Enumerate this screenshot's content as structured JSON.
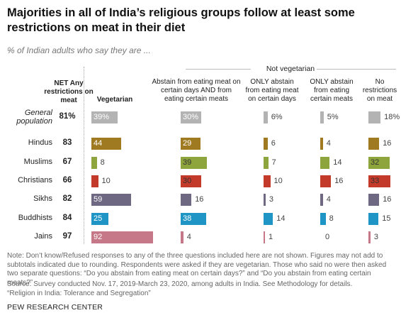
{
  "title": "Majorities in all of India’s religious groups follow at least some restrictions on meat in their diet",
  "subtitle": "% of Indian adults who say they are ...",
  "group_header": "Not vegetarian",
  "note": "Note: Don’t know/Refused responses to any of the three questions included here are not shown. Figures may not add to subtotals indicated due to rounding. Respondents were asked if they are vegetarian. Those who said no were then asked two separate questions: “Do you abstain from eating meat on certain days?” and “Do you abstain from eating certain meats?”",
  "source": "Source: Survey conducted Nov. 17, 2019-March 23, 2020, among adults in India. See Methodology for details.",
  "report": "“Religion in India: Tolerance and Segregation”",
  "credit": "PEW RESEARCH CENTER",
  "chart_data": {
    "type": "bar",
    "title": "Majorities in all of India’s religious groups follow at least some restrictions on meat in their diet",
    "net_header": "NET Any restrictions on meat",
    "net_values": [
      "81%",
      "83",
      "67",
      "66",
      "82",
      "84",
      "97"
    ],
    "categories": [
      "General population",
      "Hindus",
      "Muslims",
      "Christians",
      "Sikhs",
      "Buddhists",
      "Jains"
    ],
    "series": [
      {
        "name": "Vegetarian",
        "values": [
          39,
          44,
          8,
          10,
          59,
          25,
          92
        ],
        "labels": [
          "39%",
          "44",
          "8",
          "10",
          "59",
          "25",
          "92"
        ]
      },
      {
        "name": "Abstain from eating meat on certain days AND from eating certain meats",
        "values": [
          30,
          29,
          39,
          30,
          16,
          38,
          4
        ],
        "labels": [
          "30%",
          "29",
          "39",
          "30",
          "16",
          "38",
          "4"
        ]
      },
      {
        "name": "ONLY abstain from eating meat on certain days",
        "values": [
          6,
          6,
          7,
          10,
          3,
          14,
          1
        ],
        "labels": [
          "6%",
          "6",
          "7",
          "10",
          "3",
          "14",
          "1"
        ]
      },
      {
        "name": "ONLY abstain from eating certain meats",
        "values": [
          5,
          4,
          14,
          16,
          4,
          8,
          0
        ],
        "labels": [
          "5%",
          "4",
          "14",
          "16",
          "4",
          "8",
          "0"
        ]
      },
      {
        "name": "No restrictions on meat",
        "values": [
          18,
          16,
          32,
          33,
          16,
          15,
          3
        ],
        "labels": [
          "18%",
          "16",
          "32",
          "33",
          "16",
          "15",
          "3"
        ]
      }
    ],
    "row_colors": [
      "#b3b3b3",
      "#a07a21",
      "#8ea43c",
      "#c43a2a",
      "#6e6882",
      "#1f95c5",
      "#c77888"
    ],
    "label_colors": [
      "#ffffff",
      "#ffffff",
      "#333333",
      "#333333",
      "#ffffff",
      "#ffffff",
      "#ffffff"
    ]
  }
}
